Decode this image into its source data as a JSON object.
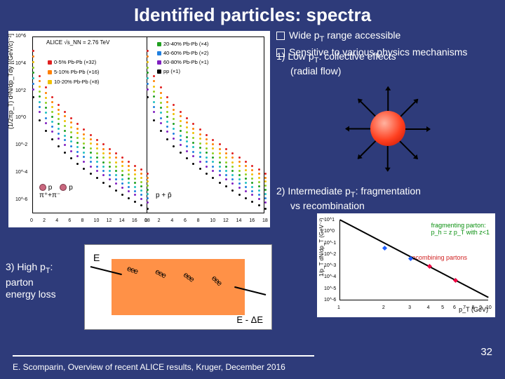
{
  "title": "Identified particles: spectra",
  "bullets": {
    "b1": "Wide p",
    "b1sub": "T",
    "b1rest": " range accessible",
    "b2": "Sensitive to various physics mechanisms"
  },
  "sec1": {
    "head": "1) Low p",
    "sub": "T",
    "rest": ": collective effects",
    "line2": "(radial flow)"
  },
  "sec2": {
    "head": "2) Intermediate p",
    "sub": "T",
    "rest": ": fragmentation",
    "line2": "vs recombination"
  },
  "sec3": {
    "head": "3) High p",
    "sub": "T",
    "rest": ":",
    "line2": "parton",
    "line3": "energy loss"
  },
  "footer": "E. Scomparin, Overview of recent ALICE results, Kruger, December 2016",
  "pagenum": "32",
  "spectra": {
    "type": "two-panel log-log particle spectra",
    "ylabel": "(1/2πp_T) d²N/dp_Tdy [(GeV/c)⁻²]",
    "header": "ALICE √s_NN = 2.76 TeV",
    "left_label": "π⁺+π⁻",
    "right_label": "p + p̄",
    "xlim": [
      0,
      18
    ],
    "ylim_exp": [
      -7,
      6
    ],
    "ytick_exp": [
      -6,
      -4,
      -2,
      0,
      2,
      4,
      6
    ],
    "xticks": [
      0,
      2,
      4,
      6,
      8,
      10,
      12,
      14,
      16,
      18
    ],
    "legend_left": [
      {
        "label": "0-5% Pb-Pb (×32)",
        "color": "#e02020"
      },
      {
        "label": "5-10% Pb-Pb (×16)",
        "color": "#ff8000"
      },
      {
        "label": "10-20% Pb-Pb (×8)",
        "color": "#f0c000"
      }
    ],
    "legend_right": [
      {
        "label": "20-40% Pb-Pb (×4)",
        "color": "#20a020"
      },
      {
        "label": "40-60% Pb-Pb (×2)",
        "color": "#2080e0"
      },
      {
        "label": "60-80% Pb-Pb (×1)",
        "color": "#8020c0"
      },
      {
        "label": "pp (×1)",
        "color": "#000000"
      }
    ],
    "curve_colors": [
      "#e02020",
      "#ff8000",
      "#f0c000",
      "#90d020",
      "#20a020",
      "#20c0c0",
      "#2080e0",
      "#8020c0",
      "#000000"
    ],
    "curve_start_y_exp": [
      5.0,
      4.6,
      4.2,
      3.8,
      3.4,
      3.0,
      2.6,
      2.2,
      1.6
    ],
    "curve_end_y_exp": [
      -4.0,
      -4.3,
      -4.6,
      -4.9,
      -5.2,
      -5.5,
      -5.8,
      -6.1,
      -6.6
    ]
  },
  "radial_flow": {
    "sun_color_center": "#ffb3a0",
    "sun_color_mid": "#ff4020",
    "sun_color_edge": "#c01000",
    "n_arrows": 8
  },
  "energy_loss": {
    "E": "E",
    "EdE": "E - ΔE",
    "block_color": "#ff9147",
    "gluon_glyph": "eee",
    "n_gluons": 4
  },
  "frag": {
    "type": "log-log schematic",
    "ylabel": "1/p_T dN/dp_T (GeV⁻²)",
    "xlabel": "p_T (GeV)",
    "txt_green": "fragmenting parton:",
    "txt_green2": "p_h = z p_T  with z<1",
    "txt_red": "recombining partons",
    "xlim": [
      1,
      10
    ],
    "ylim_exp": [
      -6,
      1
    ],
    "xticks": [
      1,
      2,
      3,
      4,
      5,
      6,
      7,
      8,
      9,
      10
    ],
    "yticks_exp": [
      1,
      0,
      -1,
      -2,
      -3,
      -4,
      -5,
      -6
    ],
    "main_line": {
      "x0": 1,
      "y0": 1,
      "x1": 10,
      "y1": -5.8,
      "color": "#000"
    },
    "red_points": [
      {
        "x": 4,
        "y": -3.0
      },
      {
        "x": 6,
        "y": -4.2
      }
    ],
    "blue_points": [
      {
        "x": 2,
        "y": -1.4
      },
      {
        "x": 3,
        "y": -2.3
      }
    ],
    "point_color_r": "#f00040",
    "point_color_b": "#2060ff"
  }
}
